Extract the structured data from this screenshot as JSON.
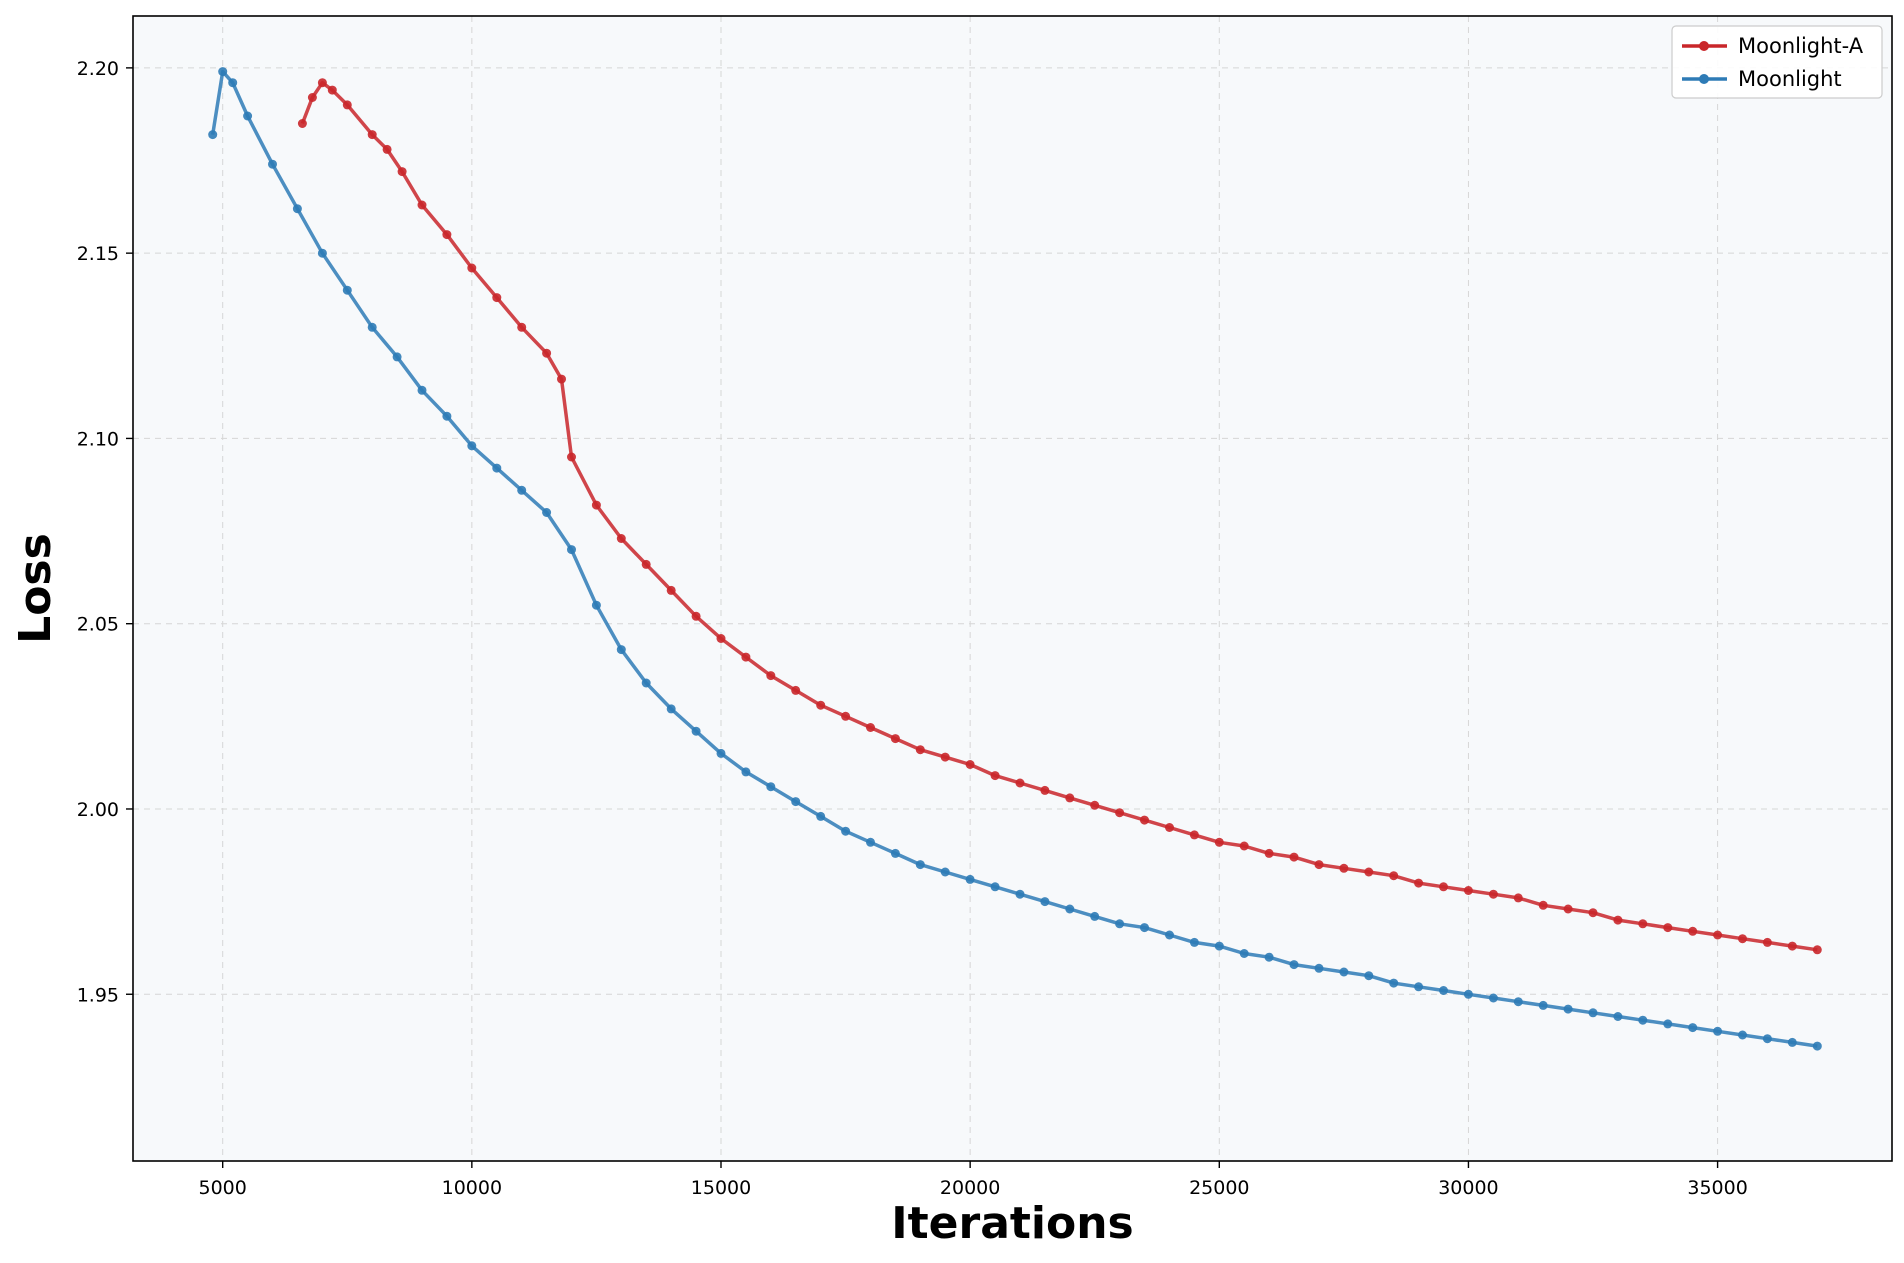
{
  "chart_data": {
    "type": "line",
    "title": "",
    "xlabel": "Iterations",
    "ylabel": "Loss",
    "xlim": [
      3200,
      38500
    ],
    "ylim": [
      1.905,
      2.214
    ],
    "xticks": [
      5000,
      10000,
      15000,
      20000,
      25000,
      30000,
      35000
    ],
    "xtick_labels": [
      "5000",
      "10000",
      "15000",
      "20000",
      "25000",
      "30000",
      "35000"
    ],
    "yticks": [
      1.95,
      2.0,
      2.05,
      2.1,
      2.15,
      2.2
    ],
    "ytick_labels": [
      "1.95",
      "2.00",
      "2.05",
      "2.10",
      "2.15",
      "2.20"
    ],
    "grid": true,
    "legend_position": "top-right",
    "markers": true,
    "series": [
      {
        "name": "Moonlight-A",
        "color": "#c9262a",
        "x": [
          6600,
          6800,
          7000,
          7200,
          7500,
          8000,
          8300,
          8600,
          9000,
          9500,
          10000,
          10500,
          11000,
          11500,
          11800,
          12000,
          12500,
          13000,
          13500,
          14000,
          14500,
          15000,
          15500,
          16000,
          16500,
          17000,
          17500,
          18000,
          18500,
          19000,
          19500,
          20000,
          20500,
          21000,
          21500,
          22000,
          22500,
          23000,
          23500,
          24000,
          24500,
          25000,
          25500,
          26000,
          26500,
          27000,
          27500,
          28000,
          28500,
          29000,
          29500,
          30000,
          30500,
          31000,
          31500,
          32000,
          32500,
          33000,
          33500,
          34000,
          34500,
          35000,
          35500,
          36000,
          36500,
          37000
        ],
        "values": [
          2.185,
          2.192,
          2.196,
          2.194,
          2.19,
          2.182,
          2.178,
          2.172,
          2.163,
          2.155,
          2.146,
          2.138,
          2.13,
          2.123,
          2.116,
          2.095,
          2.082,
          2.073,
          2.066,
          2.059,
          2.052,
          2.046,
          2.041,
          2.036,
          2.032,
          2.028,
          2.025,
          2.022,
          2.019,
          2.016,
          2.014,
          2.012,
          2.009,
          2.007,
          2.005,
          2.003,
          2.001,
          1.999,
          1.997,
          1.995,
          1.993,
          1.991,
          1.99,
          1.988,
          1.987,
          1.985,
          1.984,
          1.983,
          1.982,
          1.98,
          1.979,
          1.978,
          1.977,
          1.976,
          1.974,
          1.973,
          1.972,
          1.97,
          1.969,
          1.968,
          1.967,
          1.966,
          1.965,
          1.964,
          1.963,
          1.962
        ]
      },
      {
        "name": "Moonlight",
        "color": "#2e7bb6",
        "x": [
          4800,
          5000,
          5200,
          5500,
          6000,
          6500,
          7000,
          7500,
          8000,
          8500,
          9000,
          9500,
          10000,
          10500,
          11000,
          11500,
          12000,
          12500,
          13000,
          13500,
          14000,
          14500,
          15000,
          15500,
          16000,
          16500,
          17000,
          17500,
          18000,
          18500,
          19000,
          19500,
          20000,
          20500,
          21000,
          21500,
          22000,
          22500,
          23000,
          23500,
          24000,
          24500,
          25000,
          25500,
          26000,
          26500,
          27000,
          27500,
          28000,
          28500,
          29000,
          29500,
          30000,
          30500,
          31000,
          31500,
          32000,
          32500,
          33000,
          33500,
          34000,
          34500,
          35000,
          35500,
          36000,
          36500,
          37000
        ],
        "values": [
          2.182,
          2.199,
          2.196,
          2.187,
          2.174,
          2.162,
          2.15,
          2.14,
          2.13,
          2.122,
          2.113,
          2.106,
          2.098,
          2.092,
          2.086,
          2.08,
          2.07,
          2.055,
          2.043,
          2.034,
          2.027,
          2.021,
          2.015,
          2.01,
          2.006,
          2.002,
          1.998,
          1.994,
          1.991,
          1.988,
          1.985,
          1.983,
          1.981,
          1.979,
          1.977,
          1.975,
          1.973,
          1.971,
          1.969,
          1.968,
          1.966,
          1.964,
          1.963,
          1.961,
          1.96,
          1.958,
          1.957,
          1.956,
          1.955,
          1.953,
          1.952,
          1.951,
          1.95,
          1.949,
          1.948,
          1.947,
          1.946,
          1.945,
          1.944,
          1.943,
          1.942,
          1.941,
          1.94,
          1.939,
          1.938,
          1.937,
          1.936
        ]
      }
    ]
  }
}
